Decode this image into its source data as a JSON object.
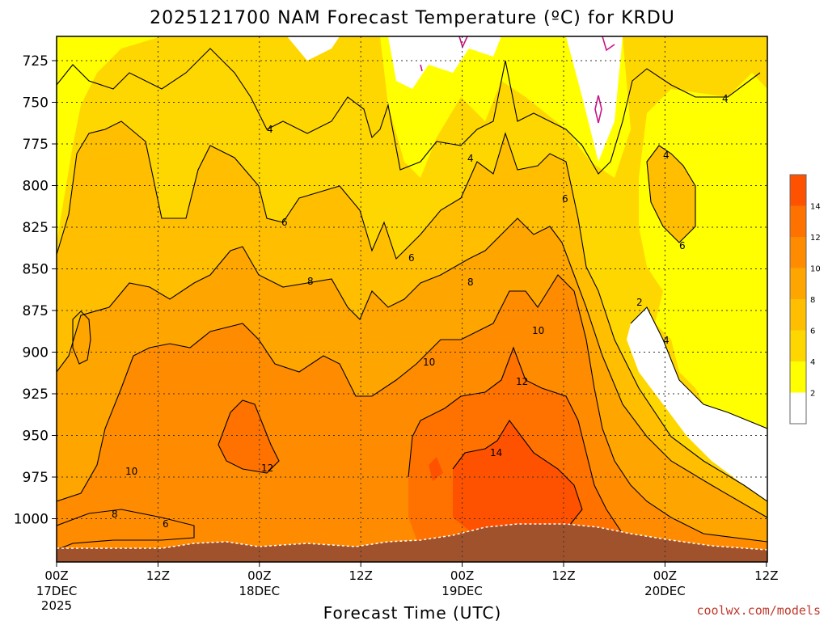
{
  "chart_data": {
    "type": "heatmap",
    "title": "2025121700 NAM Forecast Temperature (ºC) for KRDU",
    "xlabel": "Forecast Time (UTC)",
    "ylabel": "",
    "y_ticks": [
      "725",
      "750",
      "775",
      "800",
      "825",
      "850",
      "875",
      "900",
      "925",
      "950",
      "975",
      "1000"
    ],
    "x_ticks": [
      {
        "label": "00Z",
        "sub": "17DEC",
        "sub2": "2025"
      },
      {
        "label": "12Z",
        "sub": "",
        "sub2": ""
      },
      {
        "label": "00Z",
        "sub": "18DEC",
        "sub2": ""
      },
      {
        "label": "12Z",
        "sub": "",
        "sub2": ""
      },
      {
        "label": "00Z",
        "sub": "19DEC",
        "sub2": ""
      },
      {
        "label": "12Z",
        "sub": "",
        "sub2": ""
      },
      {
        "label": "00Z",
        "sub": "20DEC",
        "sub2": ""
      },
      {
        "label": "12Z",
        "sub": "",
        "sub2": ""
      }
    ],
    "colorbar_labels": [
      "14",
      "12",
      "10",
      "8",
      "6",
      "4",
      "2"
    ],
    "colorbar_colors": [
      "#ff5200",
      "#ff7200",
      "#ff8c00",
      "#ffa500",
      "#ffbf00",
      "#ffd700",
      "#ffff00",
      "#ffffff"
    ],
    "contour_labels": [
      "4",
      "4",
      "4",
      "4",
      "4",
      "6",
      "6",
      "6",
      "6",
      "8",
      "8",
      "8",
      "6",
      "10",
      "10",
      "10",
      "12",
      "12",
      "14",
      "2"
    ],
    "below_ground_color": "#a0522d",
    "grid": true
  },
  "credit": "coolwx.com/models"
}
